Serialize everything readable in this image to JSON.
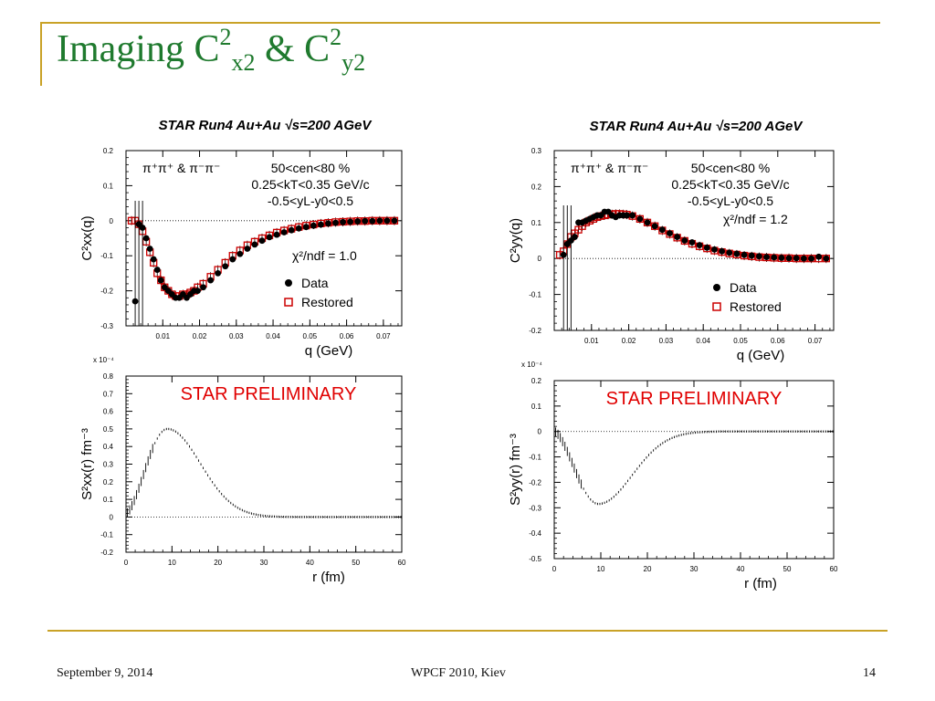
{
  "slide": {
    "title": {
      "main": "Imaging C",
      "sup1": "2",
      "sub1": "x2",
      "mid": " & C",
      "sup2": "2",
      "sub2": "y2"
    },
    "footer": {
      "date": "September 9, 2014",
      "conference": "WPCF 2010, Kiev",
      "page": "14"
    },
    "accent_color": "#c9a227",
    "title_color": "#1f7a2e"
  },
  "chart_data": [
    {
      "id": "cx",
      "type": "scatter",
      "title": "STAR Run4 Au+Au √s=200 AGeV",
      "xlabel": "q (GeV)",
      "ylabel": "C²xx(q)",
      "xlim": [
        0,
        0.075
      ],
      "ylim": [
        -0.3,
        0.2
      ],
      "xticks": [
        0.01,
        0.02,
        0.03,
        0.04,
        0.05,
        0.06,
        0.07
      ],
      "yticks": [
        -0.3,
        -0.2,
        -0.1,
        0,
        0.1,
        0.2
      ],
      "annotations": [
        "π⁺π⁺ & π⁻π⁻",
        "50<cen<80 %",
        "0.25<kT<0.35 GeV/c",
        "-0.5<yL-y0<0.5",
        "χ²/ndf = 1.0"
      ],
      "legend": {
        "placement": "lower-right",
        "entries": [
          "Data",
          "Restored"
        ]
      },
      "series": [
        {
          "name": "Data",
          "marker": "filled-circle",
          "color": "#000000",
          "x": [
            0.0025,
            0.0035,
            0.0045,
            0.0055,
            0.0065,
            0.0075,
            0.0085,
            0.0095,
            0.0105,
            0.0115,
            0.0125,
            0.0135,
            0.0145,
            0.0155,
            0.0165,
            0.0175,
            0.0185,
            0.0195,
            0.021,
            0.023,
            0.025,
            0.027,
            0.029,
            0.031,
            0.033,
            0.035,
            0.037,
            0.039,
            0.041,
            0.043,
            0.045,
            0.047,
            0.049,
            0.051,
            0.053,
            0.055,
            0.057,
            0.059,
            0.061,
            0.063,
            0.065,
            0.067,
            0.069,
            0.071,
            0.073
          ],
          "y": [
            -0.23,
            -0.01,
            -0.02,
            -0.05,
            -0.08,
            -0.11,
            -0.14,
            -0.17,
            -0.19,
            -0.2,
            -0.21,
            -0.22,
            -0.22,
            -0.21,
            -0.22,
            -0.21,
            -0.2,
            -0.2,
            -0.19,
            -0.17,
            -0.15,
            -0.13,
            -0.11,
            -0.095,
            -0.08,
            -0.068,
            -0.057,
            -0.047,
            -0.04,
            -0.033,
            -0.027,
            -0.022,
            -0.018,
            -0.014,
            -0.011,
            -0.008,
            -0.006,
            -0.004,
            -0.003,
            -0.002,
            -0.001,
            -0.001,
            0,
            0,
            0
          ]
        },
        {
          "name": "Restored",
          "marker": "open-square",
          "color": "#cc0000",
          "x": [
            0.0015,
            0.0025,
            0.0035,
            0.0045,
            0.0055,
            0.0065,
            0.0075,
            0.0085,
            0.0095,
            0.0105,
            0.0115,
            0.0125,
            0.0135,
            0.0145,
            0.0155,
            0.0165,
            0.0175,
            0.0185,
            0.0195,
            0.021,
            0.023,
            0.025,
            0.027,
            0.029,
            0.031,
            0.033,
            0.035,
            0.037,
            0.039,
            0.041,
            0.043,
            0.045,
            0.047,
            0.049,
            0.051,
            0.053,
            0.055,
            0.057,
            0.059,
            0.061,
            0.063,
            0.065,
            0.067,
            0.069,
            0.071,
            0.073
          ],
          "y": [
            0,
            0,
            -0.01,
            -0.03,
            -0.06,
            -0.09,
            -0.12,
            -0.15,
            -0.17,
            -0.19,
            -0.2,
            -0.21,
            -0.215,
            -0.215,
            -0.21,
            -0.21,
            -0.205,
            -0.2,
            -0.19,
            -0.18,
            -0.16,
            -0.14,
            -0.12,
            -0.1,
            -0.085,
            -0.07,
            -0.06,
            -0.05,
            -0.042,
            -0.034,
            -0.028,
            -0.023,
            -0.018,
            -0.014,
            -0.011,
            -0.008,
            -0.006,
            -0.004,
            -0.003,
            -0.002,
            -0.001,
            -0.001,
            0,
            0,
            0,
            0
          ]
        }
      ]
    },
    {
      "id": "cy",
      "type": "scatter",
      "title": "STAR Run4 Au+Au √s=200 AGeV",
      "xlabel": "q (GeV)",
      "ylabel": "C²yy(q)",
      "xlim": [
        0,
        0.075
      ],
      "ylim": [
        -0.2,
        0.3
      ],
      "xticks": [
        0.01,
        0.02,
        0.03,
        0.04,
        0.05,
        0.06,
        0.07
      ],
      "yticks": [
        -0.2,
        -0.1,
        0,
        0.1,
        0.2,
        0.3
      ],
      "annotations": [
        "π⁺π⁺ & π⁻π⁻",
        "50<cen<80 %",
        "0.25<kT<0.35 GeV/c",
        "-0.5<yL-y0<0.5",
        "χ²/ndf = 1.2"
      ],
      "legend": {
        "placement": "lower-right",
        "entries": [
          "Data",
          "Restored"
        ]
      },
      "series": [
        {
          "name": "Data",
          "marker": "filled-circle",
          "color": "#000000",
          "x": [
            0.0025,
            0.0035,
            0.0045,
            0.0055,
            0.0065,
            0.0075,
            0.0085,
            0.0095,
            0.0105,
            0.0115,
            0.0125,
            0.0135,
            0.0145,
            0.0155,
            0.0165,
            0.0175,
            0.0185,
            0.0195,
            0.021,
            0.023,
            0.025,
            0.027,
            0.029,
            0.031,
            0.033,
            0.035,
            0.037,
            0.039,
            0.041,
            0.043,
            0.045,
            0.047,
            0.049,
            0.051,
            0.053,
            0.055,
            0.057,
            0.059,
            0.061,
            0.063,
            0.065,
            0.067,
            0.069,
            0.071,
            0.073
          ],
          "y": [
            0.01,
            0.04,
            0.05,
            0.06,
            0.1,
            0.1,
            0.105,
            0.11,
            0.115,
            0.12,
            0.12,
            0.13,
            0.13,
            0.12,
            0.115,
            0.12,
            0.12,
            0.12,
            0.12,
            0.11,
            0.1,
            0.09,
            0.08,
            0.07,
            0.06,
            0.05,
            0.045,
            0.037,
            0.03,
            0.025,
            0.02,
            0.016,
            0.013,
            0.01,
            0.008,
            0.006,
            0.004,
            0.003,
            0.002,
            0.001,
            0.001,
            0,
            0,
            0.005,
            0
          ]
        },
        {
          "name": "Restored",
          "marker": "open-square",
          "color": "#cc0000",
          "x": [
            0.0015,
            0.0025,
            0.0035,
            0.0045,
            0.0055,
            0.0065,
            0.0075,
            0.0085,
            0.0095,
            0.0105,
            0.0115,
            0.0125,
            0.0135,
            0.0145,
            0.0155,
            0.0165,
            0.0175,
            0.0185,
            0.0195,
            0.021,
            0.023,
            0.025,
            0.027,
            0.029,
            0.031,
            0.033,
            0.035,
            0.037,
            0.039,
            0.041,
            0.043,
            0.045,
            0.047,
            0.049,
            0.051,
            0.053,
            0.055,
            0.057,
            0.059,
            0.061,
            0.063,
            0.065,
            0.067,
            0.069,
            0.071,
            0.073
          ],
          "y": [
            0.01,
            0.02,
            0.04,
            0.06,
            0.07,
            0.08,
            0.09,
            0.1,
            0.105,
            0.11,
            0.115,
            0.118,
            0.12,
            0.122,
            0.123,
            0.124,
            0.124,
            0.123,
            0.122,
            0.118,
            0.11,
            0.1,
            0.09,
            0.078,
            0.068,
            0.058,
            0.049,
            0.041,
            0.034,
            0.028,
            0.022,
            0.018,
            0.014,
            0.011,
            0.008,
            0.006,
            0.004,
            0.003,
            0.002,
            0.001,
            0.001,
            0,
            0,
            0,
            0,
            0
          ]
        }
      ]
    },
    {
      "id": "sx",
      "type": "line",
      "title": "",
      "xlabel": "r (fm)",
      "ylabel": "S²xx(r) fm⁻³",
      "exponent_label": "x 10⁻⁴",
      "xlim": [
        0,
        60
      ],
      "ylim": [
        -0.2,
        0.8
      ],
      "xticks": [
        0,
        10,
        20,
        30,
        40,
        50,
        60
      ],
      "yticks": [
        -0.2,
        -0.1,
        0,
        0.1,
        0.2,
        0.3,
        0.4,
        0.5,
        0.6,
        0.7,
        0.8
      ],
      "annotations": [
        "STAR PRELIMINARY"
      ],
      "shape": {
        "peak_r": 9,
        "peak_value": 0.5,
        "width": 4.5,
        "start_value": 0.02,
        "end_r": 40
      }
    },
    {
      "id": "sy",
      "type": "line",
      "title": "",
      "xlabel": "r (fm)",
      "ylabel": "S²yy(r) fm⁻³",
      "exponent_label": "x 10⁻⁴",
      "xlim": [
        0,
        60
      ],
      "ylim": [
        -0.5,
        0.2
      ],
      "xticks": [
        0,
        10,
        20,
        30,
        40,
        50,
        60
      ],
      "yticks": [
        -0.5,
        -0.4,
        -0.3,
        -0.2,
        -0.1,
        0,
        0.1,
        0.2
      ],
      "annotations": [
        "STAR PRELIMINARY"
      ],
      "shape": {
        "peak_r": 9.5,
        "peak_value": -0.285,
        "width": 4.5,
        "start_value": 0,
        "end_r": 35
      }
    }
  ]
}
